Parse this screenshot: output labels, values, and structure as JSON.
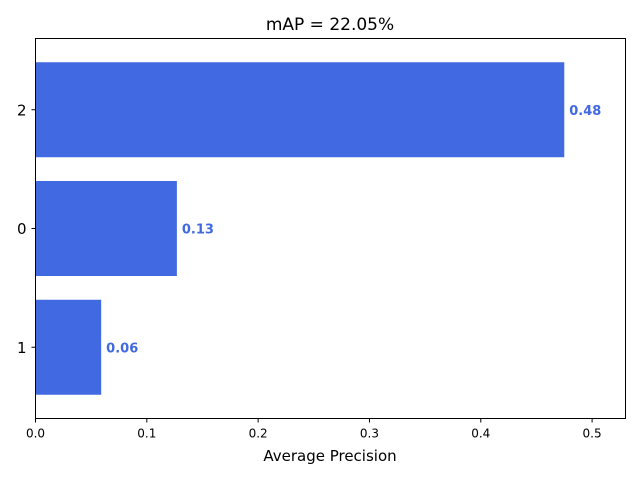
{
  "chart_data": {
    "type": "bar",
    "orientation": "horizontal",
    "title": "mAP = 22.05%",
    "xlabel": "Average Precision",
    "ylabel": "",
    "categories": [
      "2",
      "0",
      "1"
    ],
    "values": [
      0.475,
      0.127,
      0.059
    ],
    "data_labels": [
      "0.48",
      "0.13",
      "0.06"
    ],
    "xlim": [
      0,
      0.53
    ],
    "xticks": [
      0.0,
      0.1,
      0.2,
      0.3,
      0.4,
      0.5
    ],
    "xtick_labels": [
      "0.0",
      "0.1",
      "0.2",
      "0.3",
      "0.4",
      "0.5"
    ],
    "grid": false,
    "bar_color": "#4169e1",
    "label_color": "#4169e1"
  }
}
